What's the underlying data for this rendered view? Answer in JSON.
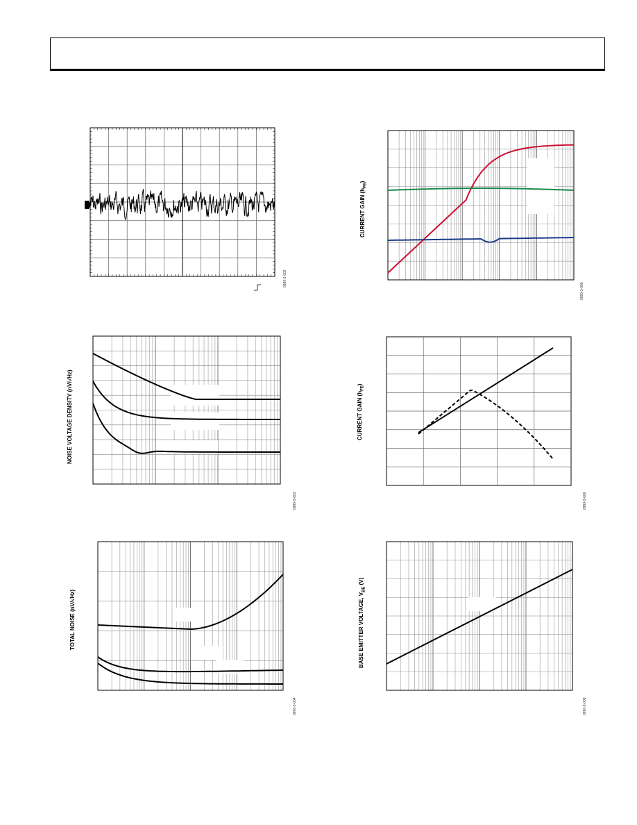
{
  "figures": [
    {
      "id": "scope",
      "ylabel": "",
      "fig_id": "0990-3-002"
    },
    {
      "id": "hfe_vs_ic",
      "ylabel": "CURRENT GAIN (h",
      "ylabel_sub": "FE",
      "ylabel_end": ")",
      "fig_id": "0990-3-005"
    },
    {
      "id": "noise_density",
      "ylabel": "NOISE VOLTAGE DENSITY (nV/√Hz)",
      "fig_id": "0990-3-003"
    },
    {
      "id": "hfe_vs_temp",
      "ylabel": "CURRENT GAIN (h",
      "ylabel_sub": "FE",
      "ylabel_end": ")",
      "fig_id": "0990-3-006"
    },
    {
      "id": "total_noise",
      "ylabel": "TOTAL NOISE (nV/√Hz)",
      "fig_id": "0990-3-004"
    },
    {
      "id": "vbe",
      "ylabel": "BASE EMITTER VOLTAGE, V",
      "ylabel_sub": "BE",
      "ylabel_end": " (V)",
      "fig_id": "0990-3-008"
    }
  ],
  "chart_data": [
    {
      "type": "line",
      "description_kind": "oscilloscope noise trace"
    },
    {
      "type": "line",
      "xscale": "log",
      "series": [
        {
          "color": "#cc1133"
        },
        {
          "color": "#1a8a4a"
        },
        {
          "color": "#1a3a8a"
        }
      ]
    },
    {
      "type": "line",
      "xscale": "log",
      "series": [
        {},
        {},
        {}
      ]
    },
    {
      "type": "line",
      "series": [
        {
          "style": "solid"
        },
        {
          "style": "dashed"
        }
      ]
    },
    {
      "type": "line",
      "xscale": "log",
      "series": [
        {},
        {},
        {}
      ]
    },
    {
      "type": "line",
      "xscale": "log",
      "series": [
        {}
      ]
    }
  ]
}
